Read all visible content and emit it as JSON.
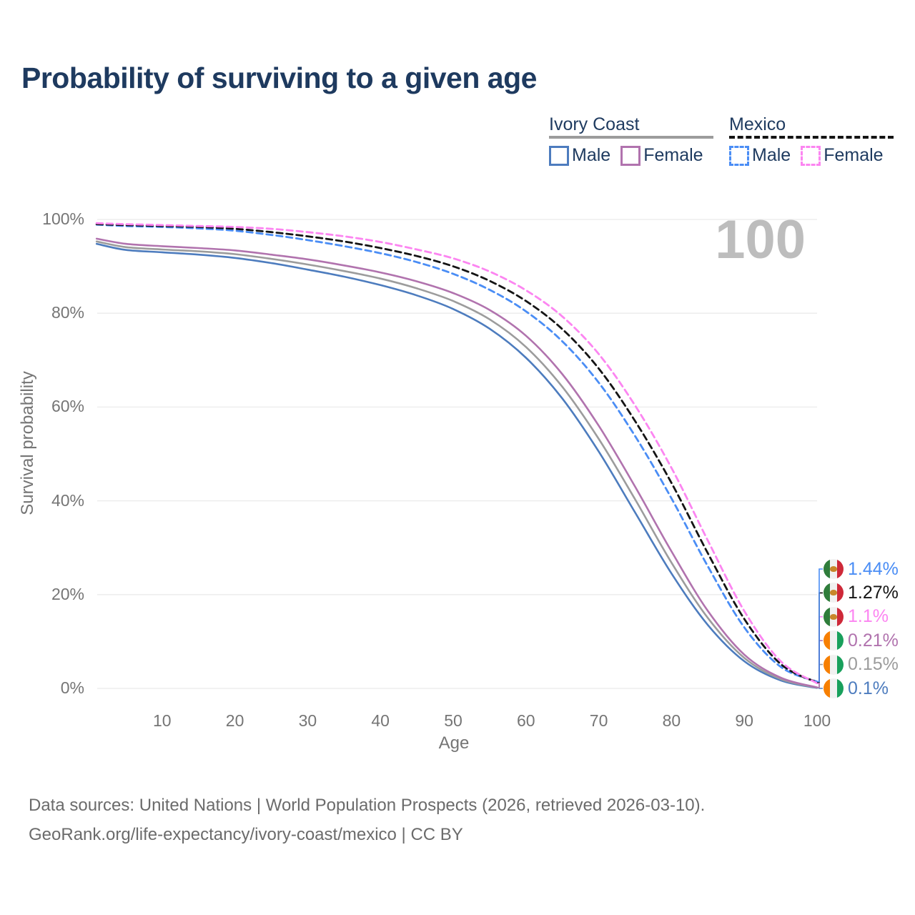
{
  "title": "Probability of surviving to a given age",
  "watermark": "100",
  "colors": {
    "title_text": "#1e3a5f",
    "axis_text": "#757575",
    "gridline": "#ebebeb",
    "watermark": "#bdbdbd",
    "footer_text": "#6b6b6b",
    "ivory_coast_male": "#4d7cbe",
    "ivory_coast_both": "#9c9c9c",
    "ivory_coast_female": "#b173ae",
    "mexico_male": "#4a8df5",
    "mexico_both": "#141414",
    "mexico_female": "#fc85f1"
  },
  "legend": {
    "groups": [
      {
        "name": "Ivory Coast",
        "line_style": "solid",
        "line_color": "#9c9c9c",
        "items": [
          {
            "label": "Male",
            "color": "#4d7cbe"
          },
          {
            "label": "Female",
            "color": "#b173ae"
          }
        ]
      },
      {
        "name": "Mexico",
        "line_style": "dashed",
        "line_color": "#141414",
        "items": [
          {
            "label": "Male",
            "color": "#4a8df5"
          },
          {
            "label": "Female",
            "color": "#fc85f1"
          }
        ]
      }
    ]
  },
  "axes": {
    "y_label": "Survival probability",
    "x_label": "Age",
    "y_ticks": [
      "0%",
      "20%",
      "40%",
      "60%",
      "80%",
      "100%"
    ],
    "y_tick_values": [
      0,
      20,
      40,
      60,
      80,
      100
    ],
    "x_ticks": [
      10,
      20,
      30,
      40,
      50,
      60,
      70,
      80,
      90,
      100
    ]
  },
  "chart_data": {
    "type": "line",
    "title": "Probability of surviving to a given age",
    "xlabel": "Age",
    "ylabel": "Survival probability",
    "x_range": [
      1,
      100
    ],
    "y_range": [
      0,
      100
    ],
    "grid": "horizontal",
    "legend_position": "top-right",
    "x": [
      1,
      5,
      10,
      15,
      20,
      25,
      30,
      35,
      40,
      45,
      50,
      55,
      60,
      65,
      70,
      75,
      80,
      85,
      90,
      95,
      100
    ],
    "series": [
      {
        "name": "Ivory Coast Male",
        "country": "Ivory Coast",
        "sex": "Male",
        "color": "#4d7cbe",
        "style": "solid",
        "flag": "ivory-coast",
        "end_label": "0.1%",
        "values": [
          94.8,
          93.5,
          93.0,
          92.5,
          91.8,
          90.7,
          89.3,
          87.8,
          86.0,
          83.8,
          80.9,
          76.7,
          70.5,
          61.8,
          50.5,
          37.5,
          24.5,
          13.5,
          5.8,
          1.7,
          0.1
        ]
      },
      {
        "name": "Ivory Coast Both sexes",
        "country": "Ivory Coast",
        "sex": "Both sexes",
        "color": "#9c9c9c",
        "style": "solid",
        "flag": "ivory-coast",
        "end_label": "0.15%",
        "values": [
          95.3,
          94.1,
          93.6,
          93.2,
          92.6,
          91.6,
          90.4,
          89.0,
          87.4,
          85.3,
          82.6,
          78.7,
          72.8,
          64.3,
          53.2,
          40.3,
          26.8,
          15.0,
          6.5,
          2.0,
          0.15
        ]
      },
      {
        "name": "Ivory Coast Female",
        "country": "Ivory Coast",
        "sex": "Female",
        "color": "#b173ae",
        "style": "solid",
        "flag": "ivory-coast",
        "end_label": "0.21%",
        "values": [
          95.9,
          94.8,
          94.3,
          93.9,
          93.4,
          92.5,
          91.5,
          90.2,
          88.7,
          86.8,
          84.3,
          80.7,
          75.2,
          67.0,
          56.0,
          43.0,
          29.2,
          16.5,
          7.2,
          2.3,
          0.21
        ]
      },
      {
        "name": "Mexico Male",
        "country": "Mexico",
        "sex": "Male",
        "color": "#4a8df5",
        "style": "dashed",
        "flag": "mexico",
        "end_label": "1.44%",
        "values": [
          98.9,
          98.6,
          98.4,
          98.1,
          97.6,
          96.7,
          95.6,
          94.3,
          92.8,
          90.9,
          88.4,
          85.0,
          80.4,
          74.0,
          65.2,
          53.8,
          40.5,
          26.0,
          13.0,
          4.6,
          1.44
        ]
      },
      {
        "name": "Mexico Both sexes",
        "country": "Mexico",
        "sex": "Both sexes",
        "color": "#141414",
        "style": "dashed",
        "flag": "mexico",
        "end_label": "1.27%",
        "values": [
          99.0,
          98.8,
          98.6,
          98.4,
          98.0,
          97.3,
          96.4,
          95.3,
          93.9,
          92.2,
          90.0,
          86.9,
          82.6,
          76.6,
          68.2,
          57.0,
          43.8,
          28.8,
          14.8,
          5.2,
          1.27
        ]
      },
      {
        "name": "Mexico Female",
        "country": "Mexico",
        "sex": "Female",
        "color": "#fc85f1",
        "style": "dashed",
        "flag": "mexico",
        "end_label": "1.1%",
        "values": [
          99.2,
          99.0,
          98.8,
          98.6,
          98.4,
          98.0,
          97.3,
          96.4,
          95.2,
          93.6,
          91.7,
          88.9,
          84.9,
          79.3,
          71.3,
          60.3,
          47.0,
          31.5,
          16.5,
          5.8,
          1.1
        ]
      }
    ]
  },
  "footer": {
    "line1": "Data sources: United Nations | World Population Prospects (2026, retrieved 2026-03-10).",
    "line2": "GeoRank.org/life-expectancy/ivory-coast/mexico | CC BY"
  }
}
